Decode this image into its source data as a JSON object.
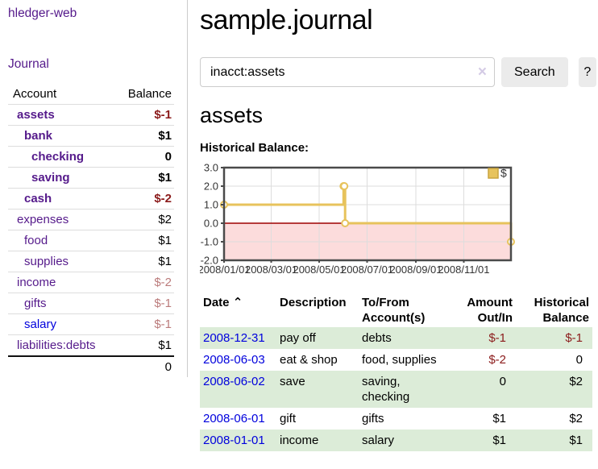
{
  "app": {
    "brand": "hledger-web",
    "nav": {
      "journal": "Journal"
    }
  },
  "colors": {
    "link_purple": "#551a8b",
    "link_blue": "#0000dd",
    "negative_strong": "#8b1b1b",
    "negative_muted": "#bb7b7b",
    "row_green": "#dcecd8",
    "chart_line_gold": "#e7c35c",
    "chart_negative_fill": "#fcdcdc",
    "chart_zero_line": "#9e0000",
    "button_gray": "#ebebeb"
  },
  "sidebar": {
    "header": {
      "account": "Account",
      "balance": "Balance"
    },
    "accounts": [
      {
        "name": "assets",
        "indent": 0,
        "bold": true,
        "balance": "$-1",
        "balance_class": "strong-negative"
      },
      {
        "name": "bank",
        "indent": 1,
        "bold": true,
        "balance": "$1",
        "balance_class": "strong"
      },
      {
        "name": "checking",
        "indent": 2,
        "bold": true,
        "balance": "0",
        "balance_class": "strong"
      },
      {
        "name": "saving",
        "indent": 2,
        "bold": true,
        "balance": "$1",
        "balance_class": "strong"
      },
      {
        "name": "cash",
        "indent": 1,
        "bold": true,
        "balance": "$-2",
        "balance_class": "strong-negative"
      },
      {
        "name": "expenses",
        "indent": 0,
        "bold": false,
        "balance": "$2",
        "balance_class": "normal"
      },
      {
        "name": "food",
        "indent": 1,
        "bold": false,
        "balance": "$1",
        "balance_class": "normal"
      },
      {
        "name": "supplies",
        "indent": 1,
        "bold": false,
        "balance": "$1",
        "balance_class": "normal"
      },
      {
        "name": "income",
        "indent": 0,
        "bold": false,
        "balance": "$-2",
        "balance_class": "negative"
      },
      {
        "name": "gifts",
        "indent": 1,
        "bold": false,
        "balance": "$-1",
        "balance_class": "negative"
      },
      {
        "name": "salary",
        "indent": 1,
        "bold": false,
        "balance": "$-1",
        "balance_class": "negative",
        "link_variant": "unvisited"
      },
      {
        "name": "liabilities:debts",
        "indent": 0,
        "bold": false,
        "balance": "$1",
        "balance_class": "normal"
      }
    ],
    "total": "0"
  },
  "main": {
    "title": "sample.journal",
    "search": {
      "value": "inacct:assets",
      "clear_icon": "×",
      "button": "Search",
      "help_button": "?"
    },
    "account_heading": "assets",
    "chart_label": "Historical Balance:"
  },
  "chart_data": {
    "type": "line",
    "step": "post",
    "title": "Historical Balance:",
    "x_range": [
      "2008-01-01",
      "2008-12-31"
    ],
    "ylim": [
      -2,
      3
    ],
    "y_ticks": [
      "3.0",
      "2.0",
      "1.0",
      "0.0",
      "-1.0",
      "-2.0"
    ],
    "x_ticks": [
      {
        "date": "2008-01-01",
        "label": "2008/01/01"
      },
      {
        "date": "2008-03-01",
        "label": "2008/03/01"
      },
      {
        "date": "2008-05-01",
        "label": "2008/05/01"
      },
      {
        "date": "2008-07-01",
        "label": "2008/07/01"
      },
      {
        "date": "2008-09-01",
        "label": "2008/09/01"
      },
      {
        "date": "2008-11-01",
        "label": "2008/11/01"
      }
    ],
    "series": [
      {
        "name": "$",
        "color": "#e7c35c",
        "points": [
          {
            "date": "2008-01-01",
            "value": 1
          },
          {
            "date": "2008-06-01",
            "value": 2
          },
          {
            "date": "2008-06-02",
            "value": 2
          },
          {
            "date": "2008-06-03",
            "value": 0
          },
          {
            "date": "2008-12-31",
            "value": -1
          }
        ]
      }
    ],
    "legend": {
      "label": "$",
      "position": "top-right"
    },
    "zero_line_color": "#9e0000",
    "negative_region_fill": "#fcdcdc",
    "grid": true
  },
  "register": {
    "sort_icon": "⌃",
    "headers": [
      {
        "line1": "Date",
        "line2": ""
      },
      {
        "line1": "Description",
        "line2": ""
      },
      {
        "line1": "To/From",
        "line2": "Account(s)"
      },
      {
        "line1": "Amount",
        "line2": "Out/In"
      },
      {
        "line1": "Historical",
        "line2": "Balance"
      }
    ],
    "rows": [
      {
        "date": "2008-12-31",
        "description": "pay off",
        "accounts": "debts",
        "amount": "$-1",
        "amount_negative": true,
        "balance": "$-1",
        "balance_negative": true
      },
      {
        "date": "2008-06-03",
        "description": "eat & shop",
        "accounts": "food, supplies",
        "amount": "$-2",
        "amount_negative": true,
        "balance": "0",
        "balance_negative": false
      },
      {
        "date": "2008-06-02",
        "description": "save",
        "accounts": "saving, checking",
        "amount": "0",
        "amount_negative": false,
        "balance": "$2",
        "balance_negative": false
      },
      {
        "date": "2008-06-01",
        "description": "gift",
        "accounts": "gifts",
        "amount": "$1",
        "amount_negative": false,
        "balance": "$2",
        "balance_negative": false
      },
      {
        "date": "2008-01-01",
        "description": "income",
        "accounts": "salary",
        "amount": "$1",
        "amount_negative": false,
        "balance": "$1",
        "balance_negative": false
      }
    ]
  }
}
